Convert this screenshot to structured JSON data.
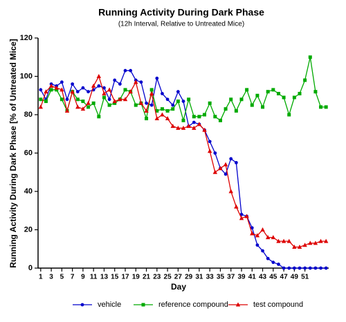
{
  "chart_data": {
    "type": "line",
    "title": "Running Activity During Dark Phase",
    "subtitle": "(12h Interval, Relative to Untreated Mice)",
    "x_label": "Day",
    "y_label": "Running Activity During Dark Phase [% of Untreated Mice]",
    "x": [
      1,
      2,
      3,
      4,
      5,
      6,
      7,
      8,
      9,
      10,
      11,
      12,
      13,
      14,
      15,
      16,
      17,
      18,
      19,
      20,
      21,
      22,
      23,
      24,
      25,
      26,
      27,
      28,
      29,
      30,
      31,
      32,
      33,
      34,
      35,
      36,
      37,
      38,
      39,
      40,
      41,
      42,
      43,
      44,
      45,
      46,
      47,
      48,
      49,
      50,
      51,
      52,
      53,
      54,
      55
    ],
    "xlim": [
      0.5,
      55.5
    ],
    "xticks": [
      1,
      3,
      5,
      7,
      9,
      11,
      13,
      15,
      17,
      19,
      21,
      23,
      25,
      27,
      29,
      31,
      33,
      35,
      37,
      39,
      41,
      43,
      45,
      47,
      49,
      51
    ],
    "ylim": [
      0,
      120
    ],
    "yticks": [
      0,
      20,
      40,
      60,
      80,
      100,
      120
    ],
    "legend": "bottom",
    "series": [
      {
        "name": "vehicle",
        "color": "#0000cc",
        "marker": "circle",
        "values": [
          93,
          88,
          96,
          95,
          97,
          88,
          96,
          92,
          94,
          92,
          93,
          95,
          94,
          88,
          98,
          96,
          103,
          103,
          98,
          97,
          86,
          85,
          99,
          91,
          88,
          85,
          92,
          87,
          74,
          76,
          75,
          72,
          66,
          60,
          52,
          49,
          57,
          55,
          28,
          27,
          21,
          12,
          9,
          5,
          3,
          2,
          0,
          0,
          0,
          0,
          0,
          0,
          0,
          0,
          0
        ]
      },
      {
        "name": "reference compound",
        "color": "#00aa00",
        "marker": "square",
        "values": [
          88,
          87,
          93,
          93,
          88,
          82,
          92,
          88,
          87,
          84,
          86,
          79,
          89,
          85,
          86,
          88,
          93,
          92,
          85,
          86,
          78,
          93,
          82,
          83,
          82,
          83,
          87,
          77,
          88,
          79,
          79,
          80,
          86,
          79,
          77,
          83,
          88,
          82,
          88,
          93,
          85,
          90,
          84,
          92,
          93,
          91,
          89,
          80,
          89,
          91,
          98,
          110,
          92,
          84,
          84
        ]
      },
      {
        "name": "test compound",
        "color": "#dd0000",
        "marker": "triangle",
        "values": [
          84,
          92,
          95,
          94,
          93,
          82,
          92,
          84,
          83,
          86,
          95,
          100,
          91,
          93,
          87,
          88,
          88,
          92,
          97,
          86,
          82,
          91,
          78,
          80,
          78,
          74,
          73,
          73,
          74,
          73,
          75,
          72,
          61,
          50,
          52,
          54,
          40,
          32,
          26,
          27,
          18,
          17,
          20,
          16,
          16,
          14,
          14,
          14,
          11,
          11,
          12,
          13,
          13,
          14,
          14
        ]
      }
    ]
  }
}
